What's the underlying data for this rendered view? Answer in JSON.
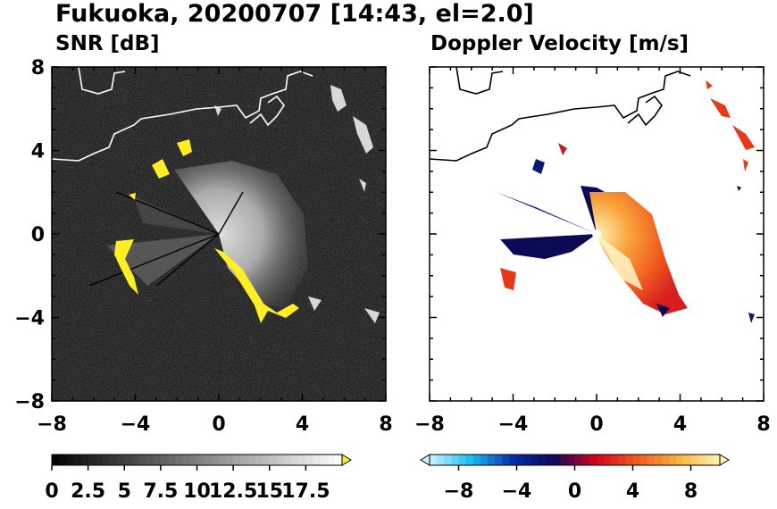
{
  "figure": {
    "title": "Fukuoka, 20200707 [14:43, el=2.0]"
  },
  "chart_data": [
    {
      "type": "heatmap",
      "panel": "left",
      "title": "SNR [dB]",
      "xlim": [
        -8,
        8
      ],
      "ylim": [
        -8,
        8
      ],
      "xticks": [
        "−8",
        "−4",
        "0",
        "4",
        "8"
      ],
      "yticks": [
        "8",
        "4",
        "0",
        "−4",
        "−8"
      ],
      "colorbar": {
        "labels": [
          "0",
          "2.5",
          "5",
          "7.5",
          "10",
          "12.5",
          "15",
          "17.5"
        ],
        "range": [
          0,
          20
        ],
        "extend": "max",
        "colors": [
          "#000000",
          "#ffffff"
        ],
        "extend_color": "#ffee22"
      },
      "grid": false,
      "background_color": "#1a1a1a",
      "strong_echo_color": "#ffee22"
    },
    {
      "type": "heatmap",
      "panel": "right",
      "title": "Doppler Velocity [m/s]",
      "xlim": [
        -8,
        8
      ],
      "ylim": [
        -8,
        8
      ],
      "xticks": [
        "−8",
        "−4",
        "0",
        "4",
        "8"
      ],
      "yticks": [],
      "colorbar": {
        "labels": [
          "−8",
          "−4",
          "0",
          "4",
          "8"
        ],
        "range": [
          -10,
          10
        ],
        "extend": "both",
        "colors": [
          "#c8f4ff",
          "#19bdf0",
          "#0a2ca8",
          "#0a0a55",
          "#d80020",
          "#f05a1e",
          "#f8b43a",
          "#fff2b0"
        ]
      },
      "grid": false,
      "background_color": "#ffffff"
    }
  ]
}
